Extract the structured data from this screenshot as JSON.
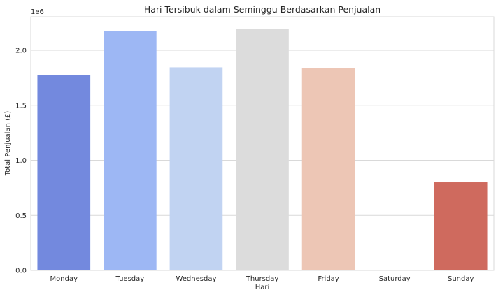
{
  "chart_data": {
    "type": "bar",
    "title": "Hari Tersibuk dalam Seminggu Berdasarkan Penjualan",
    "xlabel": "Hari",
    "ylabel": "Total Penjualan (£)",
    "y_offset_label": "1e6",
    "categories": [
      "Monday",
      "Tuesday",
      "Wednesday",
      "Thursday",
      "Friday",
      "Saturday",
      "Sunday"
    ],
    "values": [
      1775000,
      2175000,
      1845000,
      2195000,
      1835000,
      0,
      800000
    ],
    "colors": [
      "#7389de",
      "#9db7f4",
      "#c1d3f2",
      "#dcdcdc",
      "#edc6b5",
      "#e9977b",
      "#cf6a5e"
    ],
    "ylim": [
      0,
      2305000
    ],
    "yticks": [
      0,
      500000,
      1000000,
      1500000,
      2000000
    ],
    "ytick_labels": [
      "0.0",
      "0.5",
      "1.0",
      "1.5",
      "2.0"
    ],
    "grid": true,
    "grid_color": "#d9d9d9",
    "legend": false
  }
}
